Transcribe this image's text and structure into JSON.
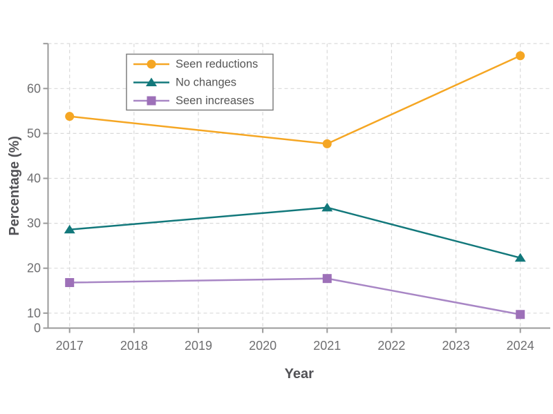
{
  "page": {
    "background": "#ffffff"
  },
  "chart_data": {
    "type": "line",
    "title": "",
    "xlabel": "Year",
    "ylabel": "Percentage (%)",
    "x_ticks": [
      2017,
      2018,
      2019,
      2020,
      2021,
      2022,
      2023,
      2024
    ],
    "y_ticks": [
      0,
      10,
      20,
      30,
      40,
      50,
      60
    ],
    "y_top_gridline": 70,
    "xlim": [
      2017,
      2024
    ],
    "grid": "dashed",
    "legend_position": "upper left inside plot",
    "series": [
      {
        "name": "Seen reductions",
        "marker": "circle",
        "color": "#F5A623",
        "marker_color": "#F5A623",
        "x": [
          2017,
          2021,
          2024
        ],
        "values": [
          53.8,
          47.7,
          67.3
        ]
      },
      {
        "name": "No changes",
        "marker": "triangle",
        "color": "#12787B",
        "marker_color": "#12787B",
        "x": [
          2017,
          2021,
          2024
        ],
        "values": [
          28.6,
          33.5,
          22.3
        ]
      },
      {
        "name": "Seen increases",
        "marker": "square",
        "color": "#A886C5",
        "marker_color": "#9D70B8",
        "x": [
          2017,
          2021,
          2024
        ],
        "values": [
          16.8,
          17.7,
          9.7
        ]
      }
    ],
    "colors": {
      "axis": "#9a9a9a",
      "grid": "#d9d9d9",
      "tick_label": "#6e6e70",
      "axis_label": "#525256",
      "legend_text": "#555555",
      "legend_border": "#7f7f7f",
      "legend_background": "#ffffff"
    }
  }
}
